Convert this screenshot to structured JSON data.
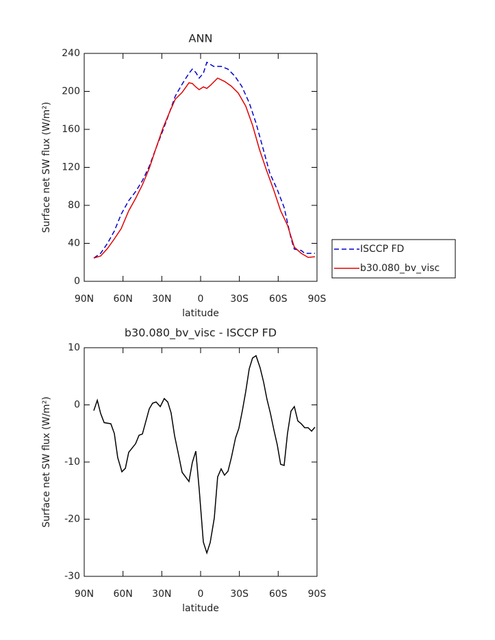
{
  "chart_data": [
    {
      "type": "line",
      "title": "ANN",
      "xlabel": "latitude",
      "ylabel": "Surface net SW flux (W/m²)",
      "xlim": [
        90,
        -90
      ],
      "xticks": [
        {
          "value": 90,
          "label": "90N"
        },
        {
          "value": 60,
          "label": "60N"
        },
        {
          "value": 30,
          "label": "30N"
        },
        0,
        {
          "value": -30,
          "label": "30S"
        },
        {
          "value": -60,
          "label": "60S"
        },
        {
          "value": -90,
          "label": "90S"
        }
      ],
      "ylim": [
        0,
        240
      ],
      "yticks": [
        0,
        40,
        80,
        120,
        160,
        200,
        240
      ],
      "legend": "right",
      "series": [
        {
          "name": "ISCCP FD",
          "color": "#0000cc",
          "dashed": true,
          "x": [
            82.6,
            77.3,
            72,
            66.7,
            61.4,
            55.6,
            50.3,
            45,
            39.7,
            34.4,
            29.1,
            23.8,
            19.6,
            14.3,
            9,
            6.4,
            3.7,
            1.1,
            -2.1,
            -4.8,
            -10.1,
            -15.9,
            -21.2,
            -26.5,
            -31.8,
            -37.6,
            -42.9,
            -48.2,
            -53.5,
            -59.3,
            -64.6,
            -69.9,
            -72.5,
            -77.8,
            -80.5,
            -88.4
          ],
          "values": [
            24.5,
            29.5,
            40,
            53,
            70.6,
            85,
            94.4,
            106,
            121,
            140.5,
            159,
            178.7,
            195,
            207.6,
            219,
            223.4,
            220,
            214,
            219,
            230.6,
            226.3,
            226.3,
            223.4,
            216,
            205.4,
            188,
            166.5,
            140.5,
            113.9,
            96.6,
            77.8,
            45.4,
            33.9,
            32.4,
            29.5,
            29.5
          ]
        },
        {
          "name": "b30.080_bv_visc",
          "color": "#e00000",
          "dashed": false,
          "x": [
            82.6,
            77.3,
            72,
            66.7,
            61.4,
            55.6,
            50.3,
            45,
            39.7,
            34.4,
            29.1,
            23.8,
            19.6,
            14.3,
            9,
            6.4,
            3.7,
            1.1,
            -2.1,
            -4.8,
            -7.4,
            -13.2,
            -18.5,
            -23.8,
            -29.1,
            -34.9,
            -40.2,
            -45.5,
            -50.8,
            -56.6,
            -61.9,
            -67.2,
            -72.5,
            -77.8,
            -83.1,
            -88.4
          ],
          "values": [
            24.5,
            26.7,
            34.6,
            44.7,
            55.5,
            74.2,
            87.2,
            101.6,
            118.9,
            140.5,
            161.4,
            178.7,
            191.7,
            198.9,
            209,
            208.3,
            204.7,
            201.8,
            204.7,
            203.2,
            206.1,
            214,
            210.5,
            205.4,
            198.2,
            184.5,
            164.3,
            139,
            117.5,
            95.9,
            74.2,
            59.1,
            36,
            29.5,
            25.2,
            25.9
          ]
        }
      ]
    },
    {
      "type": "line",
      "title": "b30.080_bv_visc - ISCCP FD",
      "xlabel": "latitude",
      "ylabel": "Surface net SW flux (W/m²)",
      "xlim": [
        90,
        -90
      ],
      "xticks": [
        {
          "value": 90,
          "label": "90N"
        },
        {
          "value": 60,
          "label": "60N"
        },
        {
          "value": 30,
          "label": "30N"
        },
        0,
        {
          "value": -30,
          "label": "30S"
        },
        {
          "value": -60,
          "label": "60S"
        },
        {
          "value": -90,
          "label": "90S"
        }
      ],
      "ylim": [
        -30,
        10
      ],
      "yticks": [
        -30,
        -20,
        -10,
        0,
        10
      ],
      "color": "#000000",
      "x": [
        82.6,
        79.9,
        77.3,
        74.6,
        69.4,
        66.7,
        64.1,
        60.9,
        58.2,
        55.6,
        50.3,
        47.6,
        45,
        39.7,
        37.1,
        34.4,
        31.2,
        28.1,
        25.4,
        22.8,
        20.1,
        17.5,
        14.3,
        9,
        6.4,
        3.7,
        1.1,
        -2.1,
        -4.8,
        -7.4,
        -10.6,
        -13.2,
        -15.9,
        -18.5,
        -21.2,
        -23.8,
        -27,
        -29.6,
        -32.3,
        -34.9,
        -37.6,
        -40.2,
        -42.9,
        -46,
        -48.7,
        -51.3,
        -54,
        -56.6,
        -59.3,
        -61.9,
        -64.6,
        -67.2,
        -69.9,
        -72.5,
        -75.2,
        -77.8,
        -80.5,
        -83.1,
        -85.8,
        -88.4
      ],
      "values": [
        -1.0,
        0.8,
        -1.5,
        -3.1,
        -3.3,
        -5,
        -9.2,
        -11.7,
        -11.1,
        -8.3,
        -6.8,
        -5.3,
        -5.1,
        -0.7,
        0.3,
        0.5,
        -0.3,
        1.1,
        0.5,
        -1.4,
        -5.4,
        -8.2,
        -11.8,
        -13.4,
        -10.1,
        -8.1,
        -14.7,
        -24,
        -25.9,
        -24.1,
        -19.8,
        -12.6,
        -11.2,
        -12.3,
        -11.6,
        -9.2,
        -5.8,
        -4.1,
        -1.0,
        2.3,
        6.3,
        8.2,
        8.6,
        6.5,
        4,
        1,
        -1.5,
        -4.3,
        -7,
        -10.4,
        -10.6,
        -5,
        -1.1,
        -0.3,
        -2.8,
        -3.3,
        -4,
        -4,
        -4.6,
        -3.9
      ]
    }
  ]
}
